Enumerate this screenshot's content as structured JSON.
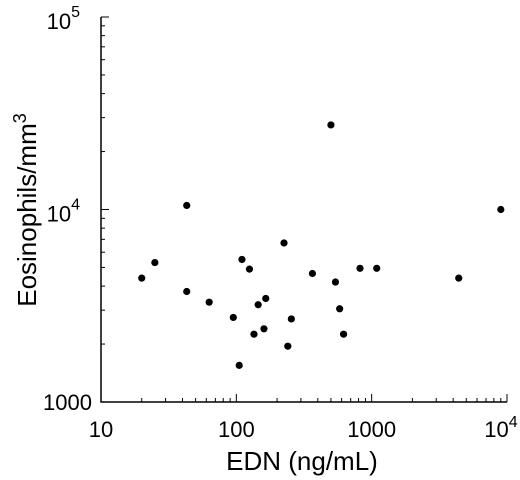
{
  "chart_data": {
    "type": "scatter",
    "title": "",
    "xlabel": "EDN (ng/mL)",
    "ylabel_base": "Eosinophils/mm",
    "ylabel_sup": "3",
    "x_scale": "log",
    "y_scale": "log",
    "xlim": [
      10,
      10000
    ],
    "ylim": [
      1000,
      100000
    ],
    "grid": false,
    "x_ticks": [
      {
        "value": 10,
        "label": "10"
      },
      {
        "value": 100,
        "label": "100"
      },
      {
        "value": 1000,
        "label": "1000"
      },
      {
        "value": 10000,
        "base": "10",
        "exp": "4"
      }
    ],
    "y_ticks": [
      {
        "value": 1000,
        "label": "1000"
      },
      {
        "value": 10000,
        "base": "10",
        "exp": "4"
      },
      {
        "value": 100000,
        "base": "10",
        "exp": "5"
      }
    ],
    "points": [
      {
        "x": 20,
        "y": 4400
      },
      {
        "x": 25,
        "y": 5300
      },
      {
        "x": 43,
        "y": 10500
      },
      {
        "x": 43,
        "y": 3750
      },
      {
        "x": 63,
        "y": 3300
      },
      {
        "x": 95,
        "y": 2750
      },
      {
        "x": 105,
        "y": 1550
      },
      {
        "x": 110,
        "y": 5500
      },
      {
        "x": 125,
        "y": 4900
      },
      {
        "x": 135,
        "y": 2250
      },
      {
        "x": 145,
        "y": 3200
      },
      {
        "x": 160,
        "y": 2400
      },
      {
        "x": 165,
        "y": 3450
      },
      {
        "x": 225,
        "y": 6700
      },
      {
        "x": 240,
        "y": 1950
      },
      {
        "x": 255,
        "y": 2700
      },
      {
        "x": 365,
        "y": 4650
      },
      {
        "x": 500,
        "y": 27500
      },
      {
        "x": 540,
        "y": 4200
      },
      {
        "x": 580,
        "y": 3050
      },
      {
        "x": 620,
        "y": 2250
      },
      {
        "x": 820,
        "y": 4950
      },
      {
        "x": 1090,
        "y": 4950
      },
      {
        "x": 4400,
        "y": 4400
      },
      {
        "x": 9000,
        "y": 10000
      }
    ]
  }
}
